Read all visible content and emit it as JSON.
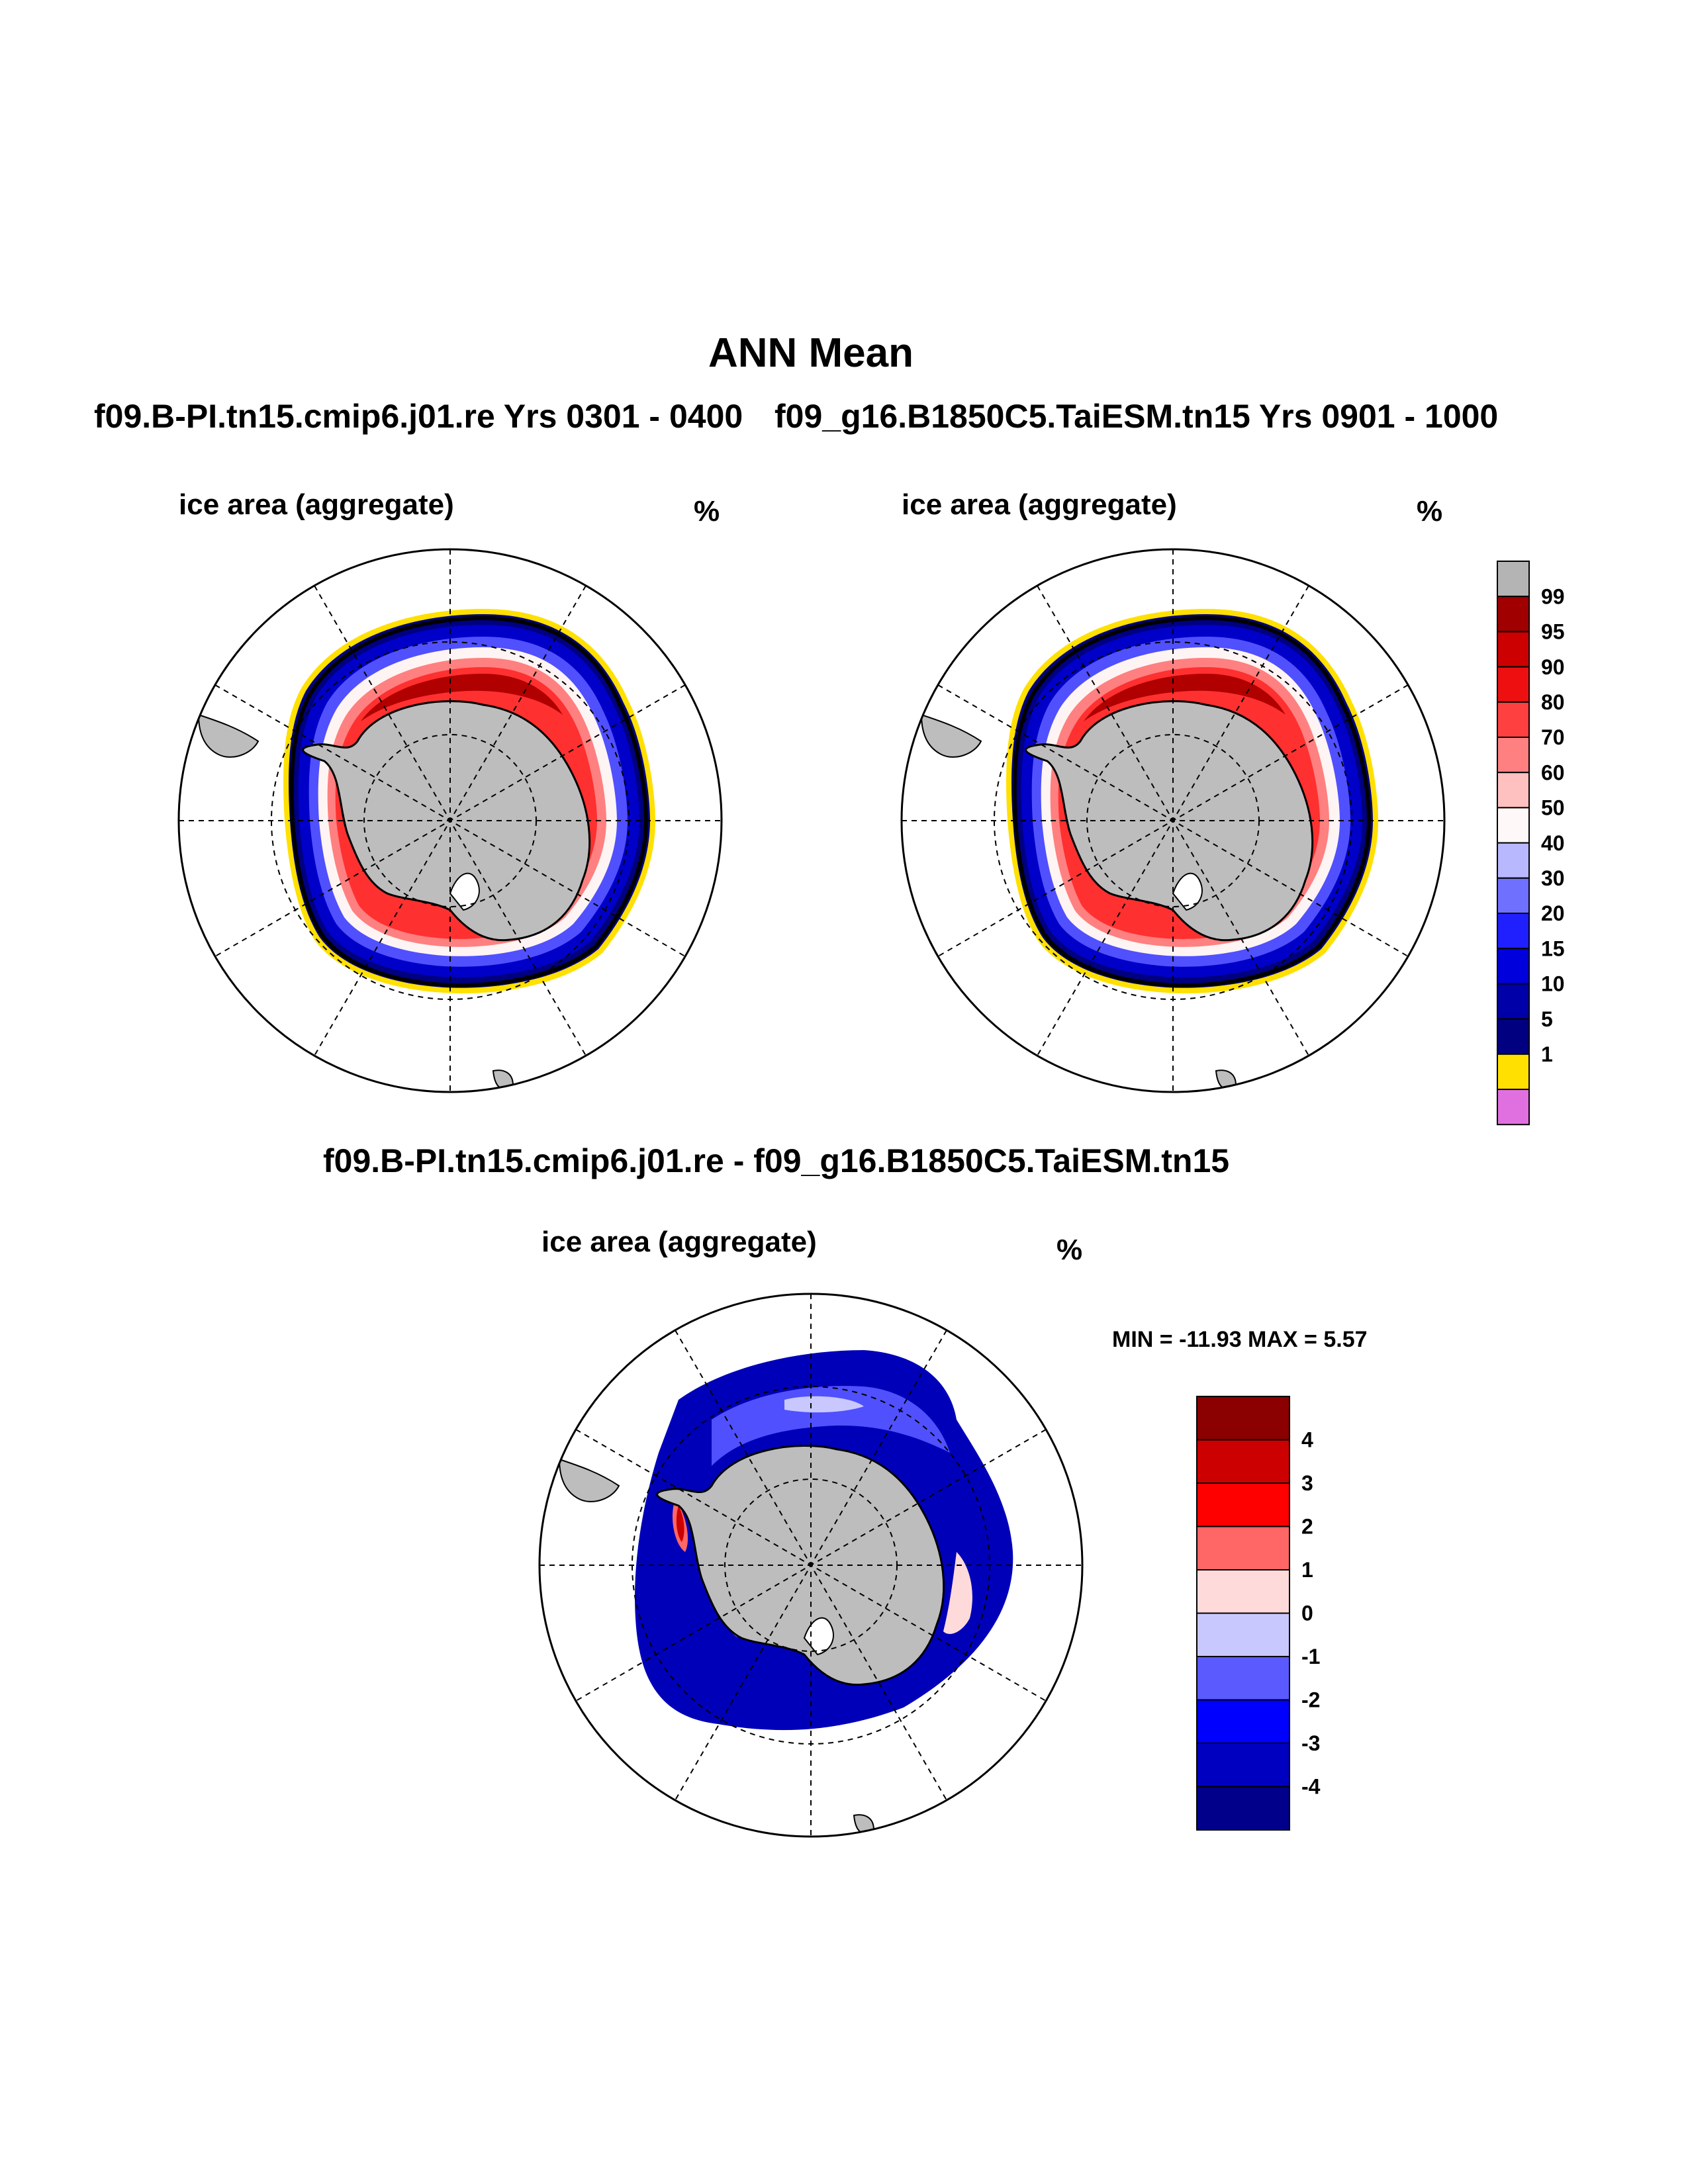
{
  "header": {
    "title": "ANN Mean",
    "case1_title": "f09.B-PI.tn15.cmip6.j01.re  Yrs 0301 - 0400",
    "case2_title": "f09_g16.B1850C5.TaiESM.tn15  Yrs 0901 - 1000",
    "diff_title": "f09.B-PI.tn15.cmip6.j01.re - f09_g16.B1850C5.TaiESM.tn15"
  },
  "panels": {
    "left": {
      "label": "ice area  (aggregate)",
      "unit": "%"
    },
    "right": {
      "label": "ice area  (aggregate)",
      "unit": "%"
    },
    "diff": {
      "label": "ice area  (aggregate)",
      "unit": "%",
      "minmax": "MIN = -11.93 MAX =   5.57"
    }
  },
  "colorbar_main": {
    "labels": [
      "99",
      "95",
      "90",
      "80",
      "70",
      "60",
      "50",
      "40",
      "30",
      "20",
      "15",
      "10",
      "5",
      "1"
    ],
    "colors": [
      "#b4b4b4",
      "#a00000",
      "#cc0000",
      "#ee1010",
      "#ff4040",
      "#ff8080",
      "#ffc0c0",
      "#fff8f8",
      "#b8b8ff",
      "#7070ff",
      "#2020ff",
      "#0000dd",
      "#0000a8",
      "#000080",
      "#ffe000",
      "#e070e0"
    ]
  },
  "colorbar_diff": {
    "labels": [
      "4",
      "3",
      "2",
      "1",
      "0",
      "-1",
      "-2",
      "-3",
      "-4"
    ],
    "colors": [
      "#8b0000",
      "#cc0000",
      "#ff0000",
      "#ff6666",
      "#ffdada",
      "#c8c8ff",
      "#5a5aff",
      "#0000ff",
      "#0000c0",
      "#00008b"
    ]
  },
  "colors": {
    "land": "#bdbdbd",
    "ocean": "#ffffff",
    "ice_edge": "#000000"
  }
}
